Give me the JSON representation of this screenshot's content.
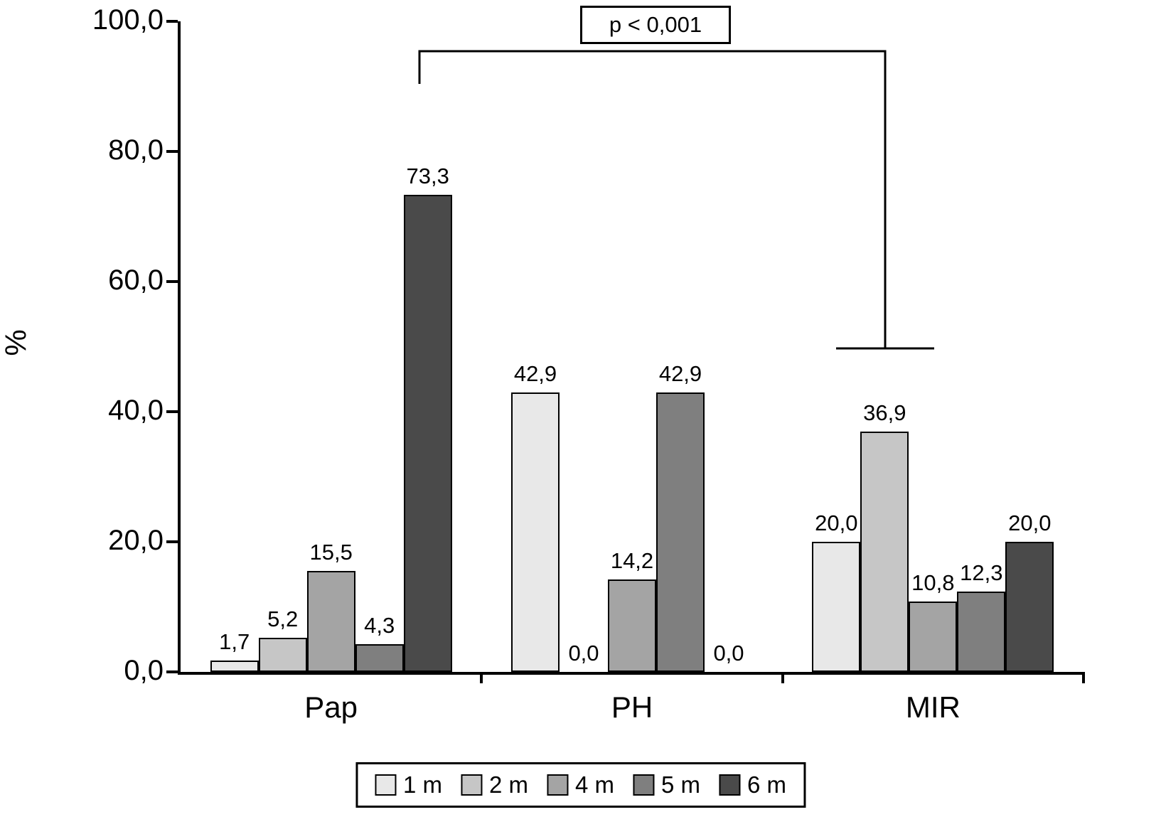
{
  "chart_data": {
    "type": "bar",
    "ylabel": "%",
    "ylim": [
      0,
      100
    ],
    "yticks": [
      "100,0",
      "80,0",
      "60,0",
      "40,0",
      "20,0",
      "0,0"
    ],
    "ytick_values": [
      100,
      80,
      60,
      40,
      20,
      0
    ],
    "categories": [
      "Pap",
      "PH",
      "MIR"
    ],
    "series": [
      {
        "name": "1 m",
        "color": "#e8e8e8",
        "values": [
          1.7,
          42.9,
          20.0
        ],
        "labels": [
          "1,7",
          "42,9",
          "20,0"
        ]
      },
      {
        "name": "2 m",
        "color": "#c6c6c6",
        "values": [
          5.2,
          0.0,
          36.9
        ],
        "labels": [
          "5,2",
          "0,0",
          "36,9"
        ]
      },
      {
        "name": "4 m",
        "color": "#a4a4a4",
        "values": [
          15.5,
          14.2,
          10.8
        ],
        "labels": [
          "15,5",
          "14,2",
          "10,8"
        ]
      },
      {
        "name": "5 m",
        "color": "#7f7f7f",
        "values": [
          4.3,
          42.9,
          12.3
        ],
        "labels": [
          "4,3",
          "42,9",
          "12,3"
        ]
      },
      {
        "name": "6 m",
        "color": "#4a4a4a",
        "values": [
          73.3,
          0.0,
          20.0
        ],
        "labels": [
          "73,3",
          "0,0",
          "20,0"
        ]
      }
    ],
    "legend_position": "bottom",
    "grid": false,
    "annotation": {
      "text": "p < 0,001"
    }
  }
}
